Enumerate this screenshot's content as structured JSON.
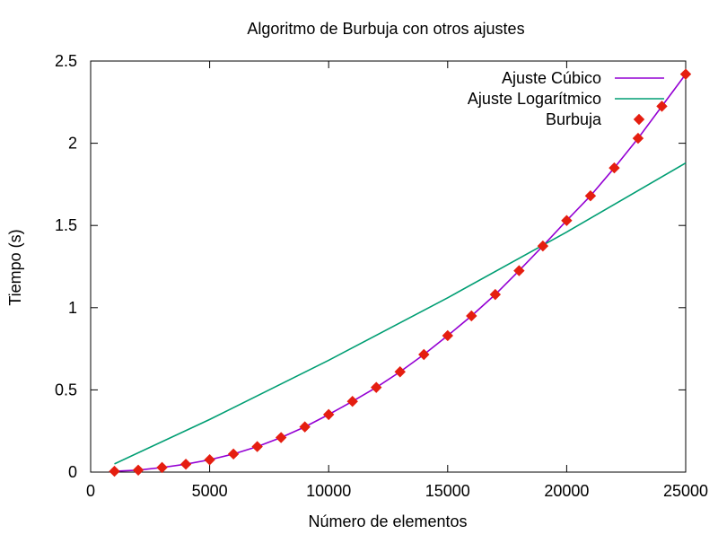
{
  "chart_data": {
    "type": "line",
    "title": "Algoritmo de Burbuja con otros ajustes",
    "xlabel": "Número de elementos",
    "ylabel": "Tiempo (s)",
    "xlim": [
      0,
      25000
    ],
    "ylim": [
      0,
      2.5
    ],
    "x_ticks": [
      0,
      5000,
      10000,
      15000,
      20000,
      25000
    ],
    "x_tick_labels": [
      "0",
      "5000",
      "10000",
      "15000",
      "20000",
      "25000"
    ],
    "y_ticks": [
      0,
      0.5,
      1,
      1.5,
      2,
      2.5
    ],
    "y_tick_labels": [
      "0",
      "0.5",
      "1",
      "1.5",
      "2",
      "2.5"
    ],
    "grid": false,
    "legend_position": "top-right",
    "series": [
      {
        "name": "Ajuste Cúbico",
        "kind": "line",
        "color": "#9400d3",
        "x": [
          1000,
          2000,
          3000,
          4000,
          5000,
          6000,
          7000,
          8000,
          9000,
          10000,
          11000,
          12000,
          13000,
          14000,
          15000,
          16000,
          17000,
          18000,
          19000,
          20000,
          21000,
          22000,
          23000,
          24000,
          25000
        ],
        "y": [
          0.005,
          0.012,
          0.028,
          0.048,
          0.075,
          0.11,
          0.155,
          0.21,
          0.275,
          0.35,
          0.43,
          0.515,
          0.61,
          0.715,
          0.83,
          0.95,
          1.08,
          1.225,
          1.375,
          1.53,
          1.68,
          1.85,
          2.03,
          2.225,
          2.42
        ]
      },
      {
        "name": "Ajuste Logarítmico",
        "kind": "line",
        "color": "#009e73",
        "x": [
          1000,
          5000,
          10000,
          15000,
          20000,
          25000
        ],
        "y": [
          0.05,
          0.32,
          0.68,
          1.06,
          1.46,
          1.88
        ]
      },
      {
        "name": "Burbuja",
        "kind": "points",
        "color": "#e51e10",
        "x": [
          1000,
          2000,
          3000,
          4000,
          5000,
          6000,
          7000,
          8000,
          9000,
          10000,
          11000,
          12000,
          13000,
          14000,
          15000,
          16000,
          17000,
          18000,
          19000,
          20000,
          21000,
          22000,
          23000,
          24000,
          25000
        ],
        "y": [
          0.005,
          0.012,
          0.028,
          0.048,
          0.075,
          0.11,
          0.155,
          0.21,
          0.275,
          0.35,
          0.43,
          0.515,
          0.61,
          0.715,
          0.83,
          0.95,
          1.08,
          1.225,
          1.375,
          1.53,
          1.68,
          1.85,
          2.03,
          2.225,
          2.42
        ]
      }
    ]
  }
}
